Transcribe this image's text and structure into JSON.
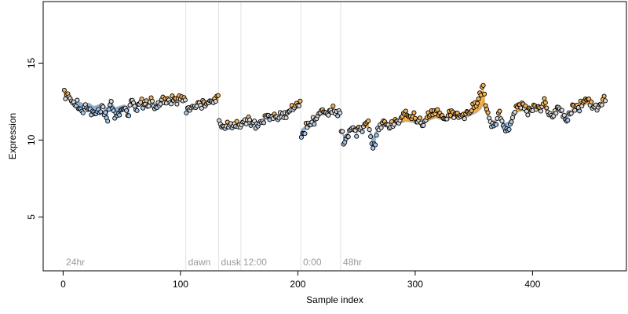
{
  "chart_data": {
    "type": "scatter",
    "title": "",
    "xlabel": "Sample index",
    "ylabel": "Expression",
    "xlim": [
      -17,
      480
    ],
    "ylim": [
      1.5,
      19.0
    ],
    "x_ticks": [
      0,
      100,
      200,
      300,
      400
    ],
    "y_ticks": [
      5,
      10,
      15
    ],
    "grid": false,
    "legend": "none",
    "colors": {
      "point_fill_high": "#f5b35a",
      "point_fill_low": "#a9c8ea",
      "point_fill_mid": "#d9d9d9",
      "stem_high": "#f0a020",
      "stem_low": "#6fa3dc",
      "fit_line": "#b4b4b4",
      "separator": "#e2e2e2",
      "point_stroke": "#000000"
    },
    "groups": [
      {
        "label": "24hr",
        "start": 1,
        "end": 104
      },
      {
        "label": "dawn",
        "start": 105,
        "end": 132
      },
      {
        "label": "dusk",
        "start": 133,
        "end": 151
      },
      {
        "label": "12:00",
        "start": 152,
        "end": 202
      },
      {
        "label": "0:00",
        "start": 203,
        "end": 236
      },
      {
        "label": "48hr",
        "start": 237,
        "end": 462
      }
    ],
    "segments": [
      {
        "x": [
          1,
          104
        ],
        "level": [
          12.7,
          12.3
        ]
      },
      {
        "x": [
          105,
          132
        ],
        "level": [
          12.1,
          12.4
        ]
      },
      {
        "x": [
          133,
          151
        ],
        "level": [
          11.0,
          11.0
        ]
      },
      {
        "x": [
          152,
          202
        ],
        "level": [
          11.1,
          11.9
        ]
      },
      {
        "x": [
          203,
          236
        ],
        "level": [
          11.0,
          11.8
        ]
      },
      {
        "x": [
          237,
          462
        ],
        "level": [
          10.5,
          12.1
        ]
      }
    ],
    "anchors": [
      [
        1,
        13.1
      ],
      [
        3,
        12.8
      ],
      [
        6,
        12.6
      ],
      [
        10,
        12.3
      ],
      [
        14,
        12.2
      ],
      [
        18,
        12.0
      ],
      [
        22,
        12.1
      ],
      [
        26,
        11.7
      ],
      [
        30,
        11.9
      ],
      [
        34,
        12.0
      ],
      [
        38,
        11.4
      ],
      [
        40,
        12.6
      ],
      [
        44,
        11.6
      ],
      [
        48,
        11.8
      ],
      [
        52,
        12.0
      ],
      [
        56,
        11.7
      ],
      [
        58,
        12.8
      ],
      [
        62,
        12.0
      ],
      [
        66,
        12.3
      ],
      [
        70,
        12.2
      ],
      [
        75,
        12.4
      ],
      [
        80,
        12.2
      ],
      [
        85,
        12.6
      ],
      [
        90,
        12.5
      ],
      [
        95,
        12.6
      ],
      [
        100,
        12.7
      ],
      [
        104,
        12.7
      ],
      [
        105,
        11.9
      ],
      [
        110,
        12.1
      ],
      [
        115,
        12.3
      ],
      [
        120,
        12.2
      ],
      [
        125,
        12.5
      ],
      [
        130,
        12.7
      ],
      [
        132,
        12.8
      ],
      [
        133,
        11.2
      ],
      [
        137,
        10.9
      ],
      [
        142,
        11.0
      ],
      [
        147,
        11.0
      ],
      [
        151,
        10.9
      ],
      [
        152,
        11.0
      ],
      [
        158,
        11.3
      ],
      [
        164,
        10.9
      ],
      [
        170,
        11.2
      ],
      [
        176,
        11.6
      ],
      [
        180,
        11.4
      ],
      [
        186,
        11.7
      ],
      [
        190,
        11.5
      ],
      [
        195,
        12.1
      ],
      [
        200,
        12.3
      ],
      [
        202,
        12.6
      ],
      [
        203,
        10.3
      ],
      [
        206,
        10.6
      ],
      [
        210,
        11.1
      ],
      [
        215,
        11.5
      ],
      [
        220,
        11.9
      ],
      [
        225,
        11.8
      ],
      [
        230,
        12.0
      ],
      [
        236,
        11.7
      ],
      [
        237,
        10.6
      ],
      [
        240,
        9.8
      ],
      [
        245,
        10.9
      ],
      [
        250,
        10.4
      ],
      [
        255,
        10.9
      ],
      [
        260,
        11.1
      ],
      [
        264,
        9.4
      ],
      [
        268,
        10.7
      ],
      [
        272,
        11.1
      ],
      [
        278,
        10.9
      ],
      [
        285,
        11.3
      ],
      [
        292,
        11.6
      ],
      [
        300,
        11.4
      ],
      [
        306,
        11.1
      ],
      [
        312,
        11.6
      ],
      [
        318,
        11.9
      ],
      [
        325,
        11.4
      ],
      [
        332,
        11.8
      ],
      [
        340,
        11.6
      ],
      [
        346,
        11.9
      ],
      [
        352,
        12.3
      ],
      [
        356,
        12.8
      ],
      [
        358,
        13.6
      ],
      [
        360,
        12.4
      ],
      [
        364,
        11.1
      ],
      [
        368,
        11.0
      ],
      [
        372,
        11.9
      ],
      [
        376,
        10.6
      ],
      [
        380,
        10.8
      ],
      [
        386,
        12.1
      ],
      [
        392,
        12.3
      ],
      [
        396,
        11.8
      ],
      [
        402,
        12.3
      ],
      [
        406,
        12.1
      ],
      [
        410,
        12.6
      ],
      [
        414,
        11.4
      ],
      [
        418,
        11.7
      ],
      [
        422,
        12.1
      ],
      [
        426,
        11.6
      ],
      [
        430,
        11.2
      ],
      [
        434,
        12.1
      ],
      [
        440,
        12.2
      ],
      [
        446,
        12.8
      ],
      [
        450,
        12.5
      ],
      [
        456,
        12.1
      ],
      [
        462,
        12.9
      ]
    ],
    "seed": 73
  }
}
